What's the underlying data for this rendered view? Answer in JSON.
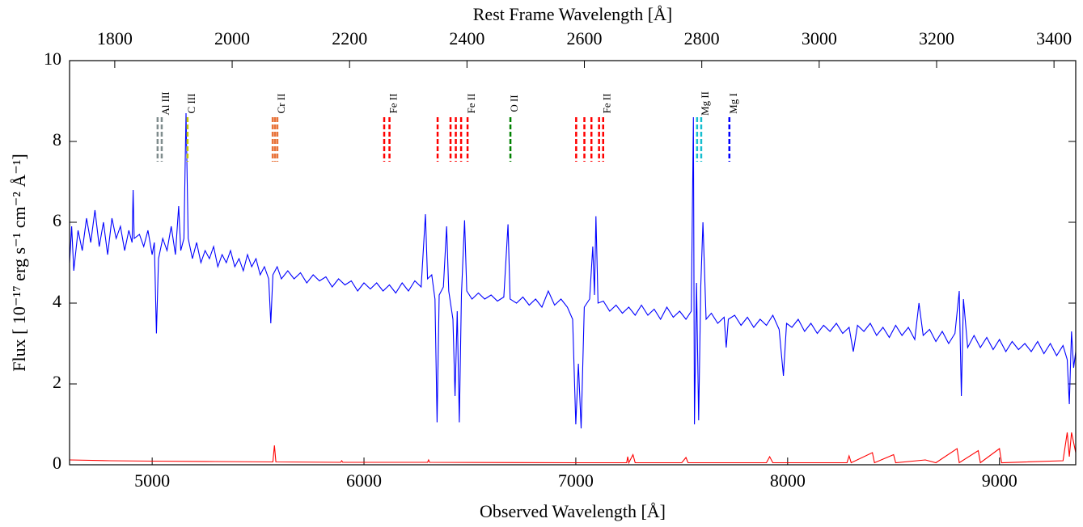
{
  "chart_data": {
    "type": "line",
    "xlabel": "Observed Wavelength [Å]",
    "ylabel": "Flux [ 10⁻¹⁷ erg s⁻¹ cm⁻² Å⁻¹]",
    "x2label": "Rest Frame Wavelength [Å]",
    "xlim": [
      4610,
      9360
    ],
    "xticks": [
      5000,
      6000,
      7000,
      8000,
      9000
    ],
    "x2lim": [
      1723,
      3437
    ],
    "x2ticks": [
      1800,
      2000,
      2200,
      2400,
      2600,
      2800,
      3000,
      3200,
      3400
    ],
    "ylim": [
      0,
      10
    ],
    "yticks": [
      0,
      2,
      4,
      6,
      8,
      10
    ],
    "series": [
      {
        "color": "#0000ff",
        "x": [
          4610,
          4620,
          4630,
          4650,
          4670,
          4690,
          4710,
          4730,
          4750,
          4770,
          4790,
          4810,
          4830,
          4850,
          4870,
          4890,
          4905,
          4910,
          4915,
          4940,
          4960,
          4980,
          5000,
          5010,
          5020,
          5030,
          5050,
          5070,
          5090,
          5110,
          5125,
          5135,
          5150,
          5160,
          5170,
          5190,
          5210,
          5230,
          5250,
          5270,
          5290,
          5310,
          5330,
          5350,
          5370,
          5390,
          5410,
          5430,
          5450,
          5470,
          5490,
          5510,
          5530,
          5550,
          5560,
          5570,
          5590,
          5610,
          5640,
          5670,
          5700,
          5730,
          5760,
          5790,
          5820,
          5850,
          5880,
          5910,
          5940,
          5970,
          6000,
          6030,
          6060,
          6090,
          6120,
          6150,
          6180,
          6210,
          6240,
          6270,
          6290,
          6300,
          6320,
          6335,
          6345,
          6355,
          6375,
          6390,
          6400,
          6420,
          6430,
          6440,
          6450,
          6460,
          6475,
          6485,
          6510,
          6540,
          6570,
          6600,
          6630,
          6660,
          6680,
          6690,
          6720,
          6750,
          6780,
          6810,
          6840,
          6870,
          6900,
          6930,
          6960,
          6985,
          7000,
          7012,
          7025,
          7040,
          7065,
          7080,
          7088,
          7095,
          7105,
          7130,
          7160,
          7190,
          7220,
          7250,
          7280,
          7310,
          7340,
          7370,
          7400,
          7430,
          7460,
          7490,
          7520,
          7545,
          7555,
          7560,
          7570,
          7580,
          7590,
          7600,
          7615,
          7640,
          7670,
          7700,
          7710,
          7720,
          7750,
          7780,
          7810,
          7840,
          7870,
          7900,
          7930,
          7960,
          7980,
          7995,
          8020,
          8050,
          8080,
          8110,
          8140,
          8170,
          8200,
          8230,
          8260,
          8290,
          8310,
          8330,
          8360,
          8390,
          8420,
          8450,
          8480,
          8510,
          8540,
          8570,
          8600,
          8620,
          8640,
          8670,
          8700,
          8730,
          8760,
          8790,
          8810,
          8820,
          8830,
          8850,
          8880,
          8910,
          8940,
          8970,
          9000,
          9030,
          9060,
          9090,
          9120,
          9150,
          9180,
          9210,
          9240,
          9270,
          9300,
          9320,
          9330,
          9340,
          9350,
          9360
        ],
        "values": [
          5.0,
          5.9,
          4.8,
          5.8,
          5.3,
          6.1,
          5.5,
          6.3,
          5.4,
          6.0,
          5.2,
          6.1,
          5.6,
          5.9,
          5.3,
          5.8,
          5.5,
          6.8,
          5.6,
          5.7,
          5.4,
          5.8,
          5.2,
          5.5,
          3.25,
          5.1,
          5.6,
          5.3,
          5.9,
          5.2,
          6.4,
          5.3,
          5.6,
          8.7,
          5.6,
          5.1,
          5.5,
          5.0,
          5.3,
          5.1,
          5.4,
          4.9,
          5.2,
          5.0,
          5.3,
          4.9,
          5.1,
          4.8,
          5.2,
          4.9,
          5.1,
          4.7,
          4.9,
          4.6,
          3.5,
          4.7,
          4.9,
          4.6,
          4.8,
          4.6,
          4.75,
          4.5,
          4.7,
          4.55,
          4.65,
          4.4,
          4.6,
          4.45,
          4.55,
          4.3,
          4.5,
          4.35,
          4.5,
          4.3,
          4.45,
          4.25,
          4.5,
          4.3,
          4.55,
          4.4,
          6.2,
          4.6,
          4.7,
          4.1,
          1.05,
          4.2,
          4.4,
          5.9,
          4.3,
          3.6,
          1.7,
          3.8,
          1.05,
          4.2,
          6.05,
          4.3,
          4.1,
          4.25,
          4.1,
          4.2,
          4.05,
          4.15,
          5.95,
          4.1,
          4.0,
          4.15,
          3.95,
          4.1,
          3.9,
          4.3,
          3.95,
          4.1,
          3.9,
          3.6,
          1.0,
          2.5,
          0.9,
          3.9,
          4.1,
          5.4,
          4.2,
          6.15,
          4.0,
          4.05,
          3.8,
          3.95,
          3.75,
          3.9,
          3.7,
          3.95,
          3.7,
          3.85,
          3.6,
          3.9,
          3.65,
          3.8,
          3.6,
          3.8,
          8.6,
          1.0,
          4.5,
          1.1,
          4.4,
          6.0,
          3.6,
          3.75,
          3.5,
          3.65,
          2.9,
          3.6,
          3.7,
          3.45,
          3.65,
          3.4,
          3.6,
          3.45,
          3.7,
          3.35,
          2.2,
          3.5,
          3.4,
          3.6,
          3.3,
          3.5,
          3.25,
          3.45,
          3.3,
          3.5,
          3.25,
          3.4,
          2.8,
          3.45,
          3.3,
          3.5,
          3.2,
          3.4,
          3.15,
          3.45,
          3.2,
          3.4,
          3.1,
          4.0,
          3.2,
          3.35,
          3.05,
          3.3,
          3.0,
          3.25,
          4.3,
          1.7,
          4.1,
          2.9,
          3.2,
          2.9,
          3.15,
          2.85,
          3.1,
          2.8,
          3.05,
          2.85,
          3.0,
          2.8,
          3.05,
          2.75,
          3.0,
          2.7,
          2.95,
          2.6,
          1.5,
          3.3,
          2.4,
          2.8
        ]
      },
      {
        "color": "#ff0000",
        "x": [
          4610,
          4800,
          5000,
          5300,
          5570,
          5577,
          5584,
          5890,
          5895,
          5900,
          6300,
          6305,
          6310,
          7000,
          7240,
          7245,
          7250,
          7270,
          7280,
          7500,
          7520,
          7530,
          7900,
          7915,
          7930,
          8280,
          8290,
          8300,
          8400,
          8410,
          8500,
          8510,
          8650,
          8700,
          8800,
          8810,
          8900,
          8910,
          9000,
          9010,
          9300,
          9320,
          9330,
          9340,
          9360
        ],
        "values": [
          0.12,
          0.1,
          0.09,
          0.08,
          0.07,
          0.48,
          0.07,
          0.06,
          0.1,
          0.06,
          0.06,
          0.12,
          0.06,
          0.05,
          0.05,
          0.2,
          0.05,
          0.25,
          0.05,
          0.05,
          0.18,
          0.05,
          0.05,
          0.2,
          0.05,
          0.05,
          0.22,
          0.05,
          0.3,
          0.05,
          0.25,
          0.05,
          0.12,
          0.05,
          0.4,
          0.05,
          0.35,
          0.05,
          0.4,
          0.05,
          0.1,
          0.8,
          0.2,
          0.8,
          0.3
        ]
      }
    ],
    "line_markers": [
      {
        "label": "Al III",
        "color": "#7f8c8d",
        "wavelengths": [
          1873,
          1880
        ]
      },
      {
        "label": "C III",
        "color": "#c8c800",
        "wavelengths": [
          1924
        ]
      },
      {
        "label": "Cr II",
        "color": "#e8743b",
        "wavelengths": [
          2069,
          2073,
          2077
        ]
      },
      {
        "label": "Fe II",
        "color": "#ff0000",
        "wavelengths": [
          2259,
          2268
        ]
      },
      {
        "label": "Fe II",
        "color": "#ff0000",
        "wavelengths": [
          2350,
          2372,
          2381,
          2390,
          2401
        ]
      },
      {
        "label": "O II",
        "color": "#008000",
        "wavelengths": [
          2474
        ]
      },
      {
        "label": "Fe II",
        "color": "#ff0000",
        "wavelengths": [
          2586,
          2600,
          2612,
          2625,
          2632
        ]
      },
      {
        "label": "Mg II",
        "color": "#17becf",
        "wavelengths": [
          2792,
          2799
        ]
      },
      {
        "label": "Mg I",
        "color": "#0000ff",
        "wavelengths": [
          2847
        ]
      }
    ]
  }
}
